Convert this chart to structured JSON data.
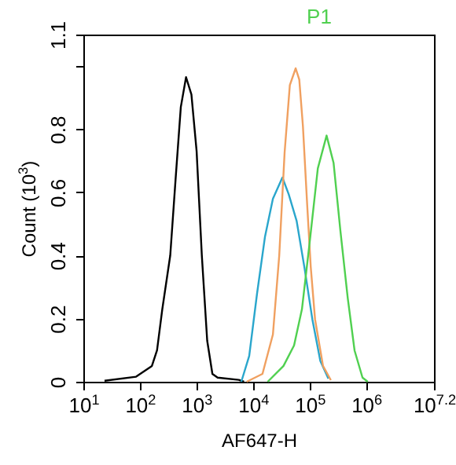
{
  "chart_data": {
    "type": "line",
    "xlabel": "AF647-H",
    "ylabel": "Count (10$^{3}$)",
    "log": "x",
    "grid": false,
    "legend": "top right",
    "xlim": [
      10,
      15848932
    ],
    "xticks": [
      {
        "value": 10,
        "label": "10$^{1}$"
      },
      {
        "value": 100,
        "label": "10$^{2}$"
      },
      {
        "value": 1000,
        "label": "10$^{3}$"
      },
      {
        "value": 10000,
        "label": "10$^{4}$"
      },
      {
        "value": 100000,
        "label": "10$^{5}$"
      },
      {
        "value": 1000000,
        "label": "10$^{6}$"
      },
      {
        "value": 15848932,
        "label": "10$^{7.2}$"
      }
    ],
    "ylim": [
      0,
      1.1
    ],
    "yticks": [
      0,
      0.2,
      0.4,
      0.6,
      0.8,
      {
        "value": 1,
        "label": null
      },
      1.1
    ],
    "series": [
      {
        "color": "#000000",
        "x": [
          23.7,
          85.7,
          163,
          201,
          249,
          344,
          427,
          529,
          655,
          815,
          1007,
          1245,
          1549,
          1914,
          2368,
          5610,
          6930
        ],
        "values": [
          0.003,
          0.016,
          0.05,
          0.1,
          0.23,
          0.4,
          0.64,
          0.87,
          0.965,
          0.91,
          0.73,
          0.4,
          0.13,
          0.025,
          0.013,
          0.006,
          0
        ]
      },
      {
        "color": "#2aa6cc",
        "x": [
          6210,
          8570,
          11800,
          16300,
          22500,
          33100,
          42800,
          59000,
          81500,
          112000,
          155000,
          215000
        ],
        "values": [
          0,
          0.082,
          0.28,
          0.46,
          0.58,
          0.647,
          0.594,
          0.51,
          0.36,
          0.198,
          0.066,
          0.01
        ]
      },
      {
        "color": "#f0a060",
        "x": [
          7730,
          14700,
          22500,
          29100,
          36200,
          44800,
          56800,
          65800,
          76300,
          90800,
          105000,
          125000,
          173000,
          238000
        ],
        "values": [
          0,
          0.025,
          0.15,
          0.4,
          0.726,
          0.94,
          0.993,
          0.957,
          0.81,
          0.56,
          0.363,
          0.198,
          0.05,
          0.005
        ]
      },
      {
        "name": "P1",
        "color": "#50d050",
        "x": [
          18200,
          34600,
          53200,
          73400,
          101000,
          140000,
          200000,
          266000,
          351000,
          474000,
          625000,
          863000,
          1070000
        ],
        "values": [
          0,
          0.05,
          0.115,
          0.23,
          0.446,
          0.676,
          0.78,
          0.693,
          0.478,
          0.264,
          0.099,
          0.013,
          0
        ]
      }
    ]
  }
}
